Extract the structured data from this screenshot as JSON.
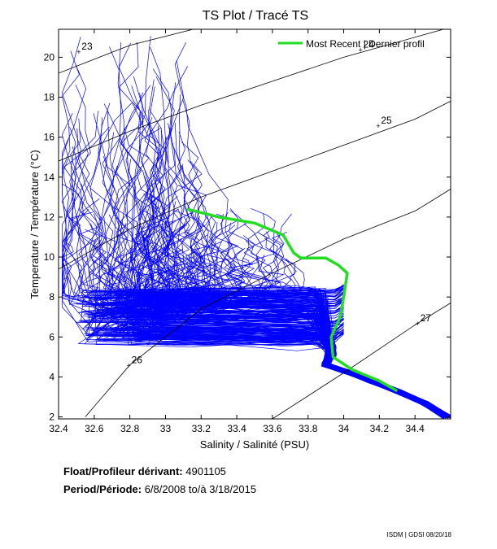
{
  "chart_data": {
    "type": "line",
    "title": "TS Plot / Tracé TS",
    "xlabel": "Salinity / Salinité (PSU)",
    "ylabel": "Temperature / Température (°C)",
    "xlim": [
      32.4,
      34.6
    ],
    "ylim": [
      1.9,
      21.4
    ],
    "xticks": [
      32.4,
      32.6,
      32.8,
      33,
      33.2,
      33.4,
      33.6,
      33.8,
      34,
      34.2,
      34.4
    ],
    "xtick_labels": [
      "32.4",
      "32.6",
      "32.8",
      "33",
      "33.2",
      "33.4",
      "33.6",
      "33.8",
      "34",
      "34.2",
      "34.4"
    ],
    "yticks": [
      2,
      4,
      6,
      8,
      10,
      12,
      14,
      16,
      18,
      20
    ],
    "ytick_labels": [
      "2",
      "4",
      "6",
      "8",
      "10",
      "12",
      "14",
      "16",
      "18",
      "20"
    ],
    "legend": {
      "label": "Most Recent | Dernier profil",
      "color": "#22dd22",
      "position": "top-right"
    },
    "profile_color": "#0000ff",
    "density_contour_color": "#000000",
    "density_contours": [
      {
        "label": "23",
        "label_at": [
          32.52,
          20.3
        ],
        "points": [
          [
            32.4,
            19.2
          ],
          [
            32.8,
            20.6
          ],
          [
            33.2,
            21.5
          ]
        ]
      },
      {
        "label": "24",
        "label_at": [
          34.1,
          20.4
        ],
        "points": [
          [
            32.4,
            14.8
          ],
          [
            32.8,
            16.3
          ],
          [
            33.2,
            17.6
          ],
          [
            33.6,
            18.8
          ],
          [
            34.0,
            20.0
          ],
          [
            34.4,
            21.0
          ],
          [
            34.6,
            21.5
          ]
        ]
      },
      {
        "label": "25",
        "label_at": [
          34.2,
          16.6
        ],
        "points": [
          [
            32.4,
            9.4
          ],
          [
            32.8,
            11.4
          ],
          [
            33.2,
            13.0
          ],
          [
            33.6,
            14.3
          ],
          [
            34.0,
            15.6
          ],
          [
            34.4,
            16.9
          ],
          [
            34.6,
            17.8
          ]
        ]
      },
      {
        "label": "26",
        "label_at": [
          32.8,
          4.6
        ],
        "points": [
          [
            32.55,
            2.0
          ],
          [
            32.8,
            4.6
          ],
          [
            33.2,
            7.4
          ],
          [
            33.6,
            9.2
          ],
          [
            34.0,
            10.9
          ],
          [
            34.4,
            12.3
          ],
          [
            34.6,
            13.4
          ]
        ]
      },
      {
        "label": "27",
        "label_at": [
          34.42,
          6.7
        ],
        "points": [
          [
            33.6,
            1.9
          ],
          [
            34.0,
            4.2
          ],
          [
            34.4,
            6.6
          ],
          [
            34.6,
            7.7
          ]
        ]
      }
    ],
    "most_recent_profile": {
      "name": "Most Recent",
      "points": [
        [
          33.12,
          12.4
        ],
        [
          33.3,
          12.0
        ],
        [
          33.5,
          11.7
        ],
        [
          33.66,
          11.1
        ],
        [
          33.72,
          10.2
        ],
        [
          33.76,
          9.95
        ],
        [
          33.9,
          9.95
        ],
        [
          33.97,
          9.6
        ],
        [
          34.02,
          9.2
        ],
        [
          34.0,
          8.0
        ],
        [
          33.98,
          7.0
        ],
        [
          33.93,
          6.0
        ],
        [
          33.94,
          5.0
        ],
        [
          34.05,
          4.35
        ],
        [
          34.2,
          3.8
        ],
        [
          34.3,
          3.3
        ]
      ]
    },
    "historical_profiles_description": "hundreds of blue profiles; deep tail runs from (33.9, 4.6) to (34.6, 2.0)",
    "historical_envelope": [
      [
        32.45,
        12.5
      ],
      [
        32.55,
        16.8
      ],
      [
        32.65,
        19.2
      ],
      [
        32.75,
        21.3
      ],
      [
        33.05,
        21.3
      ],
      [
        33.12,
        18.5
      ],
      [
        33.2,
        15.9
      ],
      [
        33.3,
        14.0
      ],
      [
        33.55,
        12.3
      ],
      [
        33.8,
        10.9
      ],
      [
        34.0,
        9.8
      ],
      [
        34.05,
        9.0
      ],
      [
        34.0,
        7.5
      ],
      [
        33.95,
        5.5
      ],
      [
        34.05,
        4.6
      ],
      [
        34.3,
        3.5
      ],
      [
        34.6,
        2.0
      ],
      [
        34.45,
        2.1
      ],
      [
        34.1,
        3.9
      ],
      [
        33.9,
        4.5
      ],
      [
        33.85,
        5.3
      ],
      [
        33.3,
        5.6
      ],
      [
        32.55,
        5.5
      ],
      [
        32.45,
        6.3
      ],
      [
        32.4,
        8.5
      ],
      [
        32.4,
        11.0
      ]
    ]
  },
  "info": {
    "float_label": "Float/Profileur dérivant:",
    "float_value": "4901105",
    "period_label": "Period/Période:",
    "period_value": "6/8/2008  to/à  3/18/2015"
  },
  "footer": "ISDM | GDSI  08/20/18"
}
